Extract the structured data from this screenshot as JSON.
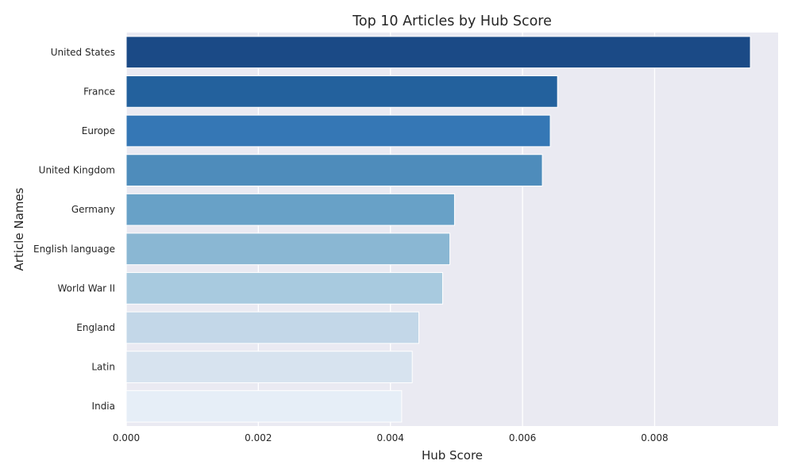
{
  "chart_data": {
    "type": "bar",
    "orientation": "horizontal",
    "title": "Top 10 Articles by Hub Score",
    "xlabel": "Hub Score",
    "ylabel": "Article Names",
    "categories": [
      "United States",
      "France",
      "Europe",
      "United Kingdom",
      "Germany",
      "English language",
      "World War II",
      "England",
      "Latin",
      "India"
    ],
    "values": [
      0.00945,
      0.00653,
      0.00642,
      0.0063,
      0.00497,
      0.0049,
      0.00479,
      0.00443,
      0.00433,
      0.00417
    ],
    "xlim": [
      0.0,
      0.00987
    ],
    "xticks": [
      0.0,
      0.002,
      0.004,
      0.006,
      0.008
    ],
    "xtick_labels": [
      "0.000",
      "0.002",
      "0.004",
      "0.006",
      "0.008"
    ],
    "grid": true,
    "colors": [
      "#1b4a86",
      "#23619d",
      "#3577b5",
      "#4e8cbb",
      "#68a1c7",
      "#8ab7d3",
      "#a8cadf",
      "#c3d7e8",
      "#d7e3ef",
      "#e6eef7"
    ],
    "background_color": "#eaeaf2",
    "grid_color": "#ffffff"
  }
}
